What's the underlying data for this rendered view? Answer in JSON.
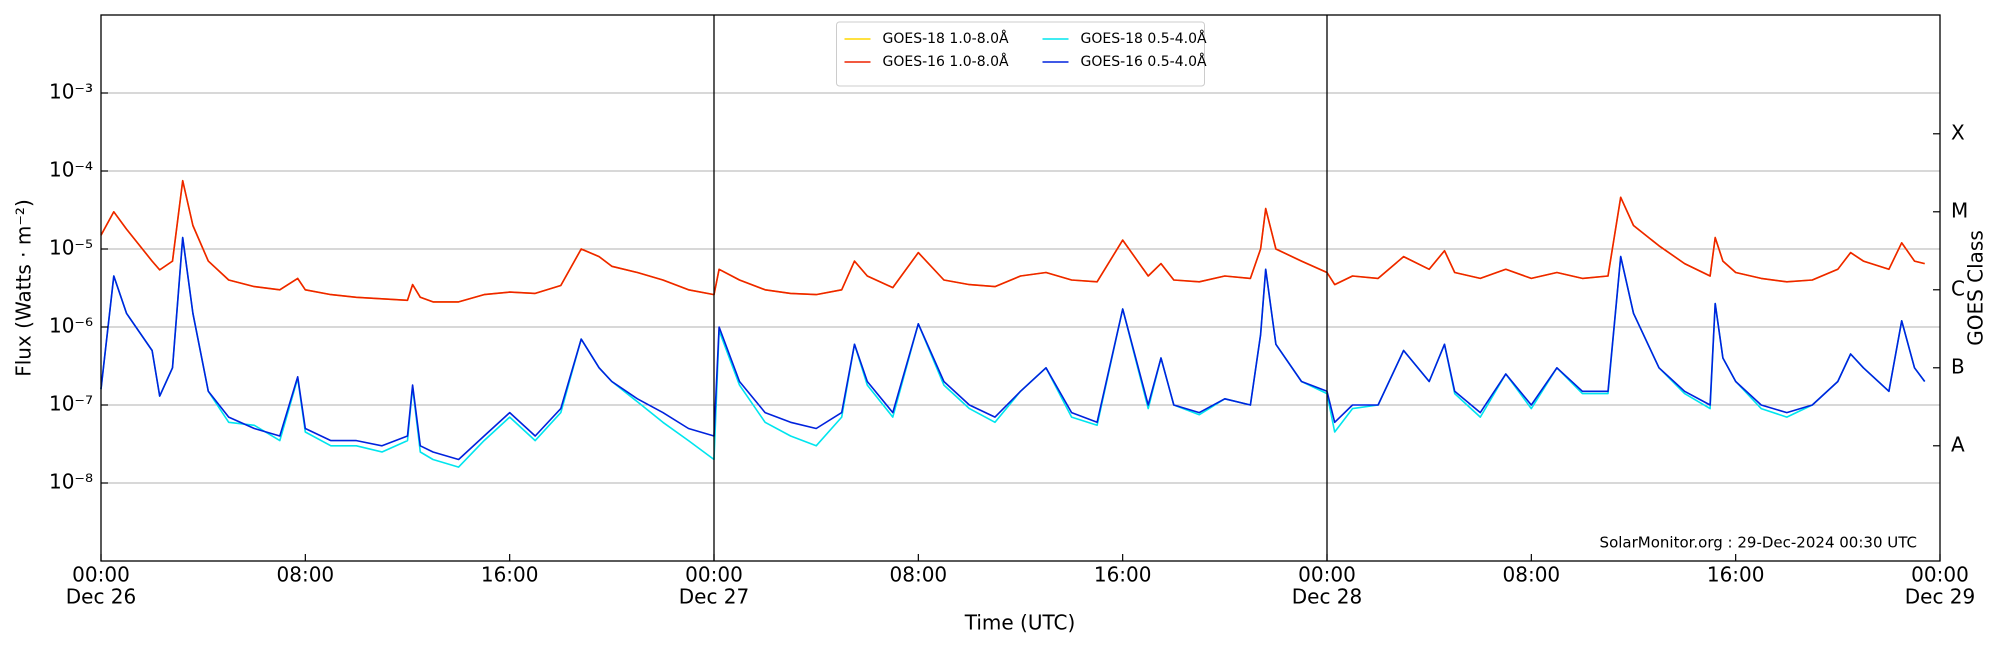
{
  "chart_data": {
    "type": "line",
    "ylabel": "Flux (Watts · m⁻²)",
    "xlabel": "Time (UTC)",
    "y2label": "GOES Class",
    "annotation": "SolarMonitor.org : 29-Dec-2024 00:30 UTC",
    "log_y": true,
    "grid": true,
    "legend": "upper center",
    "xlim": [
      0,
      72
    ],
    "xticks": [
      {
        "value": 0,
        "label": "00:00",
        "sublabel": "Dec 26"
      },
      {
        "value": 8,
        "label": "08:00"
      },
      {
        "value": 16,
        "label": "16:00"
      },
      {
        "value": 24,
        "label": "00:00",
        "sublabel": "Dec 27"
      },
      {
        "value": 32,
        "label": "08:00"
      },
      {
        "value": 40,
        "label": "16:00"
      },
      {
        "value": 48,
        "label": "00:00",
        "sublabel": "Dec 28"
      },
      {
        "value": 56,
        "label": "08:00"
      },
      {
        "value": 64,
        "label": "16:00"
      },
      {
        "value": 72,
        "label": "00:00",
        "sublabel": "Dec 29"
      }
    ],
    "ylim": [
      1e-09,
      0.01
    ],
    "yticks": [
      {
        "value": 1e-08,
        "label": "10⁻⁸"
      },
      {
        "value": 1e-07,
        "label": "10⁻⁷"
      },
      {
        "value": 1e-06,
        "label": "10⁻⁶"
      },
      {
        "value": 1e-05,
        "label": "10⁻⁵"
      },
      {
        "value": 0.0001,
        "label": "10⁻⁴"
      },
      {
        "value": 0.001,
        "label": "10⁻³"
      }
    ],
    "y2lim": [
      1e-09,
      0.01
    ],
    "y2ticks": [
      {
        "value": 3e-08,
        "label": "A"
      },
      {
        "value": 3e-07,
        "label": "B"
      },
      {
        "value": 3e-06,
        "label": "C"
      },
      {
        "value": 3e-05,
        "label": "M"
      },
      {
        "value": 0.0003,
        "label": "X"
      }
    ],
    "x": [
      0,
      0.5,
      1,
      2,
      2.3,
      2.8,
      3.2,
      3.6,
      4.2,
      5,
      6,
      7,
      7.7,
      8,
      9,
      10,
      11,
      12,
      12.2,
      12.5,
      13,
      14,
      15,
      16,
      17,
      18,
      18.8,
      19.5,
      20,
      21,
      22,
      23,
      24,
      24.2,
      25,
      26,
      27,
      28,
      29,
      29.5,
      30,
      31,
      32,
      33,
      34,
      35,
      36,
      37,
      38,
      39,
      40,
      41,
      41.5,
      42,
      43,
      44,
      45,
      45.4,
      45.6,
      46,
      47,
      48,
      48.3,
      49,
      50,
      51,
      52,
      52.6,
      53,
      54,
      55,
      56,
      57,
      58,
      59,
      59.5,
      60,
      61,
      62,
      63,
      63.2,
      63.5,
      64,
      65,
      66,
      67,
      68,
      68.5,
      69,
      70,
      70.5,
      71,
      71.4
    ],
    "series": [
      {
        "name": "GOES-18 1.0-8.0Å",
        "color": "#ffd700",
        "values": [
          1.5e-05,
          3e-05,
          1.8e-05,
          7e-06,
          5.4e-06,
          7e-06,
          7.5e-05,
          2e-05,
          7e-06,
          4e-06,
          3.3e-06,
          3e-06,
          4.2e-06,
          3e-06,
          2.6e-06,
          2.4e-06,
          2.3e-06,
          2.2e-06,
          3.5e-06,
          2.4e-06,
          2.1e-06,
          2.1e-06,
          2.6e-06,
          2.8e-06,
          2.7e-06,
          3.4e-06,
          1e-05,
          8e-06,
          6e-06,
          5e-06,
          4e-06,
          3e-06,
          2.6e-06,
          5.5e-06,
          4e-06,
          3e-06,
          2.7e-06,
          2.6e-06,
          3e-06,
          7e-06,
          4.5e-06,
          3.2e-06,
          9e-06,
          4e-06,
          3.5e-06,
          3.3e-06,
          4.5e-06,
          5e-06,
          4e-06,
          3.8e-06,
          1.3e-05,
          4.5e-06,
          6.5e-06,
          4e-06,
          3.8e-06,
          4.5e-06,
          4.2e-06,
          1e-05,
          3.3e-05,
          1e-05,
          7e-06,
          5e-06,
          3.5e-06,
          4.5e-06,
          4.2e-06,
          8e-06,
          5.5e-06,
          9.5e-06,
          5e-06,
          4.2e-06,
          5.5e-06,
          4.2e-06,
          5e-06,
          4.2e-06,
          4.5e-06,
          4.6e-05,
          2e-05,
          1.1e-05,
          6.5e-06,
          4.5e-06,
          1.4e-05,
          7e-06,
          5e-06,
          4.2e-06,
          3.8e-06,
          4e-06,
          5.5e-06,
          9e-06,
          7e-06,
          5.5e-06,
          1.2e-05,
          7e-06,
          6.5e-06
        ]
      },
      {
        "name": "GOES-16 1.0-8.0Å",
        "color": "#ee2200",
        "values": [
          1.5e-05,
          3e-05,
          1.8e-05,
          7e-06,
          5.4e-06,
          7e-06,
          7.5e-05,
          2e-05,
          7e-06,
          4e-06,
          3.3e-06,
          3e-06,
          4.2e-06,
          3e-06,
          2.6e-06,
          2.4e-06,
          2.3e-06,
          2.2e-06,
          3.5e-06,
          2.4e-06,
          2.1e-06,
          2.1e-06,
          2.6e-06,
          2.8e-06,
          2.7e-06,
          3.4e-06,
          1e-05,
          8e-06,
          6e-06,
          5e-06,
          4e-06,
          3e-06,
          2.6e-06,
          5.5e-06,
          4e-06,
          3e-06,
          2.7e-06,
          2.6e-06,
          3e-06,
          7e-06,
          4.5e-06,
          3.2e-06,
          9e-06,
          4e-06,
          3.5e-06,
          3.3e-06,
          4.5e-06,
          5e-06,
          4e-06,
          3.8e-06,
          1.3e-05,
          4.5e-06,
          6.5e-06,
          4e-06,
          3.8e-06,
          4.5e-06,
          4.2e-06,
          1e-05,
          3.3e-05,
          1e-05,
          7e-06,
          5e-06,
          3.5e-06,
          4.5e-06,
          4.2e-06,
          8e-06,
          5.5e-06,
          9.5e-06,
          5e-06,
          4.2e-06,
          5.5e-06,
          4.2e-06,
          5e-06,
          4.2e-06,
          4.5e-06,
          4.6e-05,
          2e-05,
          1.1e-05,
          6.5e-06,
          4.5e-06,
          1.4e-05,
          7e-06,
          5e-06,
          4.2e-06,
          3.8e-06,
          4e-06,
          5.5e-06,
          9e-06,
          7e-06,
          5.5e-06,
          1.2e-05,
          7e-06,
          6.5e-06
        ]
      },
      {
        "name": "GOES-18 0.5-4.0Å",
        "color": "#00e5ee",
        "values": [
          1.6e-07,
          4.5e-06,
          1.5e-06,
          5e-07,
          1.3e-07,
          3e-07,
          1.4e-05,
          1.5e-06,
          1.5e-07,
          6e-08,
          5.5e-08,
          3.5e-08,
          2.2e-07,
          4.5e-08,
          3e-08,
          3e-08,
          2.5e-08,
          3.5e-08,
          1.7e-07,
          2.5e-08,
          2e-08,
          1.6e-08,
          3.5e-08,
          7e-08,
          3.5e-08,
          8e-08,
          7e-07,
          3e-07,
          2e-07,
          1.1e-07,
          6e-08,
          3.5e-08,
          2e-08,
          9e-07,
          1.8e-07,
          6e-08,
          4e-08,
          3e-08,
          7e-08,
          6e-07,
          1.8e-07,
          7e-08,
          1.1e-06,
          1.8e-07,
          9e-08,
          6e-08,
          1.5e-07,
          3e-07,
          7e-08,
          5.5e-08,
          1.7e-06,
          9e-08,
          4e-07,
          1e-07,
          7.5e-08,
          1.2e-07,
          1e-07,
          8e-07,
          5.5e-06,
          6e-07,
          2e-07,
          1.4e-07,
          4.5e-08,
          9e-08,
          1e-07,
          5e-07,
          2e-07,
          6e-07,
          1.4e-07,
          7e-08,
          2.5e-07,
          9e-08,
          3e-07,
          1.4e-07,
          1.4e-07,
          8e-06,
          1.5e-06,
          3e-07,
          1.4e-07,
          9e-08,
          2e-06,
          4e-07,
          2e-07,
          9e-08,
          7e-08,
          1e-07,
          2e-07,
          4.5e-07,
          3e-07,
          1.5e-07,
          1.2e-06,
          3e-07,
          2e-07
        ]
      },
      {
        "name": "GOES-16 0.5-4.0Å",
        "color": "#0022dd",
        "values": [
          1.6e-07,
          4.5e-06,
          1.5e-06,
          5e-07,
          1.3e-07,
          3e-07,
          1.4e-05,
          1.5e-06,
          1.5e-07,
          7e-08,
          5e-08,
          4e-08,
          2.3e-07,
          5e-08,
          3.5e-08,
          3.5e-08,
          3e-08,
          4e-08,
          1.8e-07,
          3e-08,
          2.5e-08,
          2e-08,
          4e-08,
          8e-08,
          4e-08,
          9e-08,
          7e-07,
          3e-07,
          2e-07,
          1.2e-07,
          8e-08,
          5e-08,
          4e-08,
          1e-06,
          2e-07,
          8e-08,
          6e-08,
          5e-08,
          8e-08,
          6e-07,
          2e-07,
          8e-08,
          1.1e-06,
          2e-07,
          1e-07,
          7e-08,
          1.5e-07,
          3e-07,
          8e-08,
          6e-08,
          1.7e-06,
          1e-07,
          4e-07,
          1e-07,
          8e-08,
          1.2e-07,
          1e-07,
          8e-07,
          5.5e-06,
          6e-07,
          2e-07,
          1.5e-07,
          6e-08,
          1e-07,
          1e-07,
          5e-07,
          2e-07,
          6e-07,
          1.5e-07,
          8e-08,
          2.5e-07,
          1e-07,
          3e-07,
          1.5e-07,
          1.5e-07,
          8e-06,
          1.5e-06,
          3e-07,
          1.5e-07,
          1e-07,
          2e-06,
          4e-07,
          2e-07,
          1e-07,
          8e-08,
          1e-07,
          2e-07,
          4.5e-07,
          3e-07,
          1.5e-07,
          1.2e-06,
          3e-07,
          2e-07
        ]
      }
    ]
  }
}
